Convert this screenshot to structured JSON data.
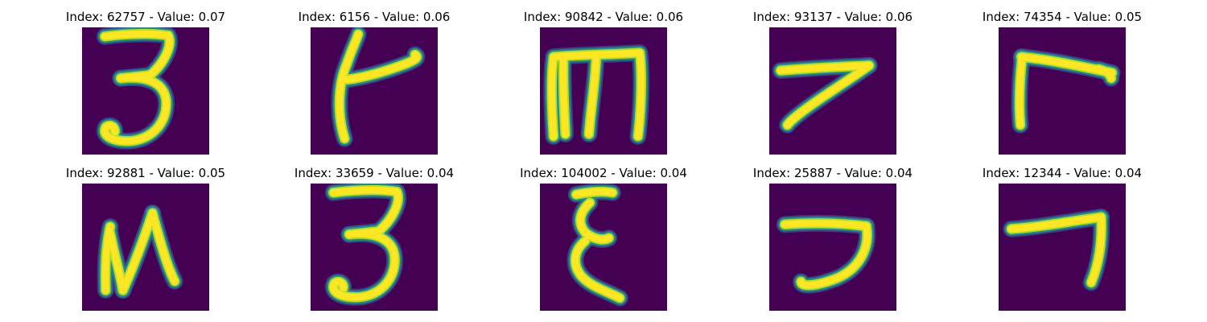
{
  "colors": {
    "background": "#440154",
    "stroke_core": "#fde725",
    "stroke_mid": "#b5de2b",
    "stroke_edge": "#21908d",
    "stroke_halo": "#3b528b"
  },
  "images": [
    {
      "title": "Index: 62757 - Value: 0.07",
      "glyph": "3"
    },
    {
      "title": "Index: 6156 - Value: 0.06",
      "glyph": "stick-hook"
    },
    {
      "title": "Index: 90842 - Value: 0.06",
      "glyph": "m"
    },
    {
      "title": "Index: 93137 - Value: 0.06",
      "glyph": "seven-slant"
    },
    {
      "title": "Index: 74354 - Value: 0.05",
      "glyph": "r"
    },
    {
      "title": "Index: 92881 - Value: 0.05",
      "glyph": "N"
    },
    {
      "title": "Index: 33659 - Value: 0.04",
      "glyph": "3"
    },
    {
      "title": "Index: 104002 - Value: 0.04",
      "glyph": "xi"
    },
    {
      "title": "Index: 25887 - Value: 0.04",
      "glyph": "hook-seven"
    },
    {
      "title": "Index: 12344 - Value: 0.04",
      "glyph": "seven-thin"
    }
  ]
}
